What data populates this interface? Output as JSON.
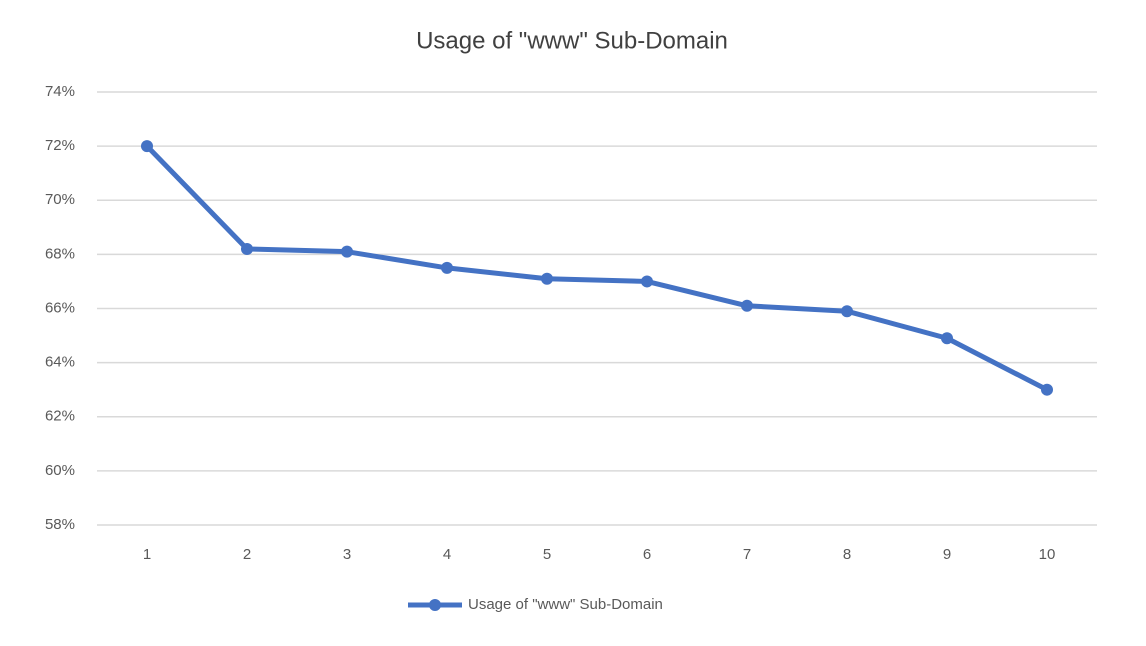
{
  "chart_data": {
    "type": "line",
    "title": "Usage of \"www\" Sub-Domain",
    "categories": [
      "1",
      "2",
      "3",
      "4",
      "5",
      "6",
      "7",
      "8",
      "9",
      "10"
    ],
    "series": [
      {
        "name": "Usage of \"www\" Sub-Domain",
        "color": "#4472c4",
        "values": [
          72.0,
          68.2,
          68.1,
          67.5,
          67.1,
          67.0,
          66.1,
          65.9,
          64.9,
          63.0
        ]
      }
    ],
    "ylim": [
      58,
      74
    ],
    "yticks": [
      {
        "value": 58,
        "label": "58%"
      },
      {
        "value": 60,
        "label": "60%"
      },
      {
        "value": 62,
        "label": "62%"
      },
      {
        "value": 64,
        "label": "64%"
      },
      {
        "value": 66,
        "label": "66%"
      },
      {
        "value": 68,
        "label": "68%"
      },
      {
        "value": 70,
        "label": "70%"
      },
      {
        "value": 72,
        "label": "72%"
      },
      {
        "value": 74,
        "label": "74%"
      }
    ],
    "grid": true,
    "legend": "bottom"
  }
}
